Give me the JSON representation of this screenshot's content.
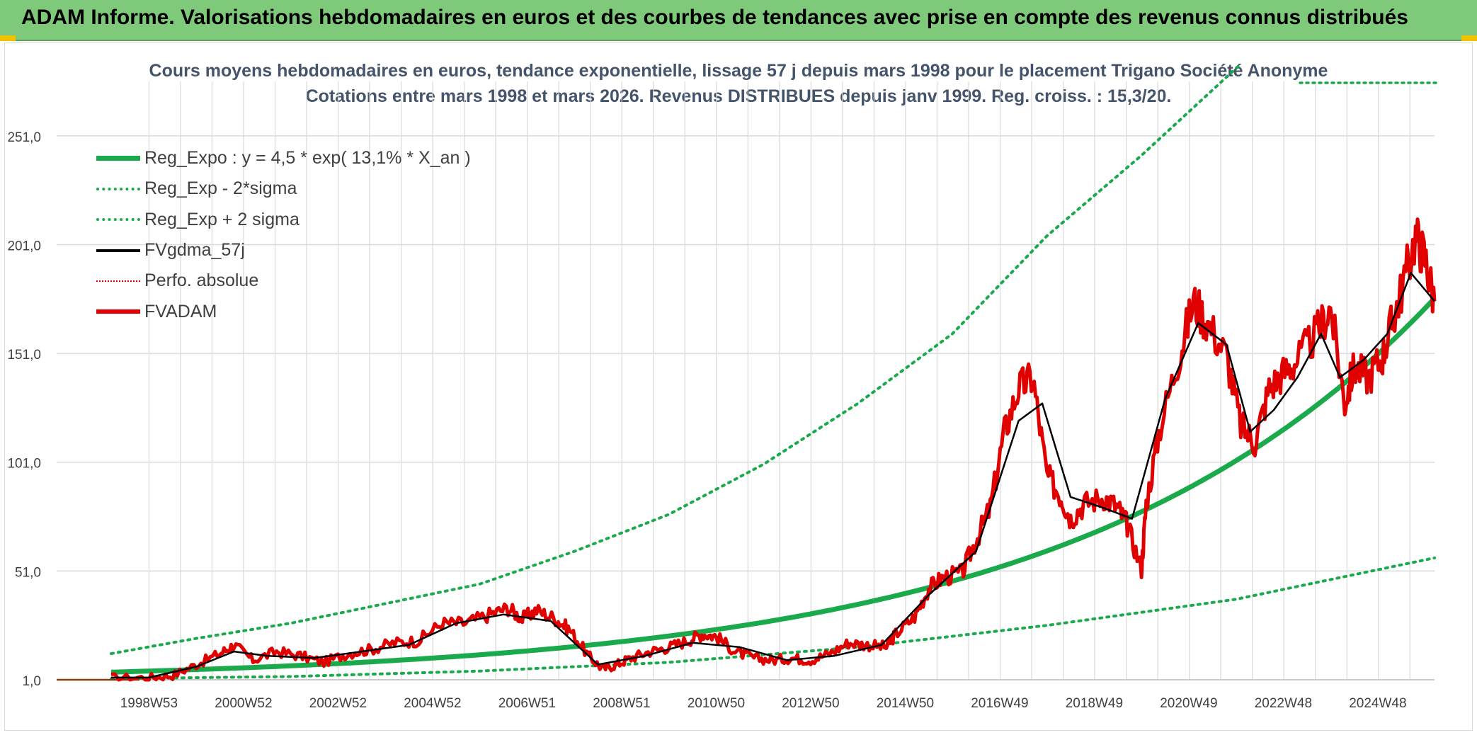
{
  "header": {
    "title": "ADAM Informe. Valorisations hebdomadaires en euros et des courbes de tendances avec prise en compte des revenus connus distribués"
  },
  "chart": {
    "title_line1": "Cours moyens hebdomadaires en euros, tendance exponentielle, lissage 57 j depuis mars 1998 pour le placement Trigano Société Anonyme",
    "title_line2": "Cotations entre mars 1998 et mars 2026. Revenus DISTRIBUES depuis janv 1999. Reg. croiss. : 15,3/20."
  },
  "legend": [
    {
      "label": "Reg_Expo : y = 4,5 * exp( 13,1% *  X_an )",
      "color": "#1aaa4c",
      "style": "solid-thick"
    },
    {
      "label": "Reg_Exp - 2*sigma",
      "color": "#1aaa4c",
      "style": "dotted"
    },
    {
      "label": "Reg_Exp + 2 sigma",
      "color": "#1aaa4c",
      "style": "dotted"
    },
    {
      "label": "FVgdma_57j",
      "color": "#000000",
      "style": "solid"
    },
    {
      "label": "Perfo. absolue",
      "color": "#e00000",
      "style": "dotted-thin"
    },
    {
      "label": "FVADAM",
      "color": "#e00000",
      "style": "solid-thick"
    }
  ],
  "colors": {
    "reg_expo": "#1aaa4c",
    "fvgdma": "#000000",
    "fvadam": "#e00000",
    "perfo": "#8b3a0f",
    "grid": "#d9d9d9",
    "axis_text": "#404040"
  },
  "chart_data": {
    "type": "line",
    "x_start_year": 1998.2,
    "x_end_year": 2026.2,
    "ylim": [
      1,
      276
    ],
    "yticks": [
      1,
      51,
      101,
      151,
      201,
      251
    ],
    "ytick_labels": [
      "1,0",
      "51,0",
      "101,0",
      "151,0",
      "201,0",
      "251,0"
    ],
    "xtick_labels": [
      "1998W53",
      "2000W52",
      "2002W52",
      "2004W52",
      "2006W51",
      "2008W51",
      "2010W50",
      "2012W50",
      "2014W50",
      "2016W49",
      "2018W49",
      "2020W49",
      "2022W48",
      "2024W48"
    ],
    "xtick_years": [
      1999.0,
      2001.0,
      2003.0,
      2005.0,
      2007.0,
      2009.0,
      2011.0,
      2013.0,
      2015.0,
      2017.0,
      2019.0,
      2021.0,
      2023.0,
      2025.0
    ],
    "reg_expo": {
      "name": "Reg_Expo : y = 4,5 * exp( 13,1% *  X_an )",
      "a": 4.5,
      "rate": 0.131,
      "x0_year": 1998.2
    },
    "reg_minus": {
      "name": "Reg_Exp - 2*sigma",
      "x": [
        1998.2,
        2002,
        2006,
        2010,
        2014,
        2018,
        2022,
        2026.2
      ],
      "y": [
        1.5,
        2.5,
        5,
        9,
        16,
        26,
        38,
        57
      ]
    },
    "reg_plus": {
      "name": "Reg_Exp + 2 sigma",
      "x": [
        1998.2,
        2000,
        2002,
        2004,
        2006,
        2008,
        2010,
        2012,
        2014,
        2016,
        2018,
        2020,
        2022.1
      ],
      "y": [
        13,
        20,
        27,
        36,
        45,
        60,
        77,
        100,
        128,
        160,
        205,
        242,
        284
      ]
    },
    "fvadam": {
      "name": "FVADAM",
      "x": [
        1998.2,
        1999.0,
        1999.5,
        2000.0,
        2000.5,
        2000.8,
        2001.2,
        2001.7,
        2002.2,
        2002.7,
        2003.2,
        2003.7,
        2004.2,
        2004.7,
        2005.2,
        2005.7,
        2006.2,
        2006.6,
        2006.9,
        2007.2,
        2007.6,
        2007.9,
        2008.3,
        2008.6,
        2008.9,
        2009.2,
        2009.6,
        2010.0,
        2010.4,
        2010.7,
        2011.0,
        2011.4,
        2011.8,
        2012.2,
        2012.6,
        2013.0,
        2013.4,
        2013.8,
        2014.2,
        2014.6,
        2014.8,
        2015.2,
        2015.5,
        2015.8,
        2016.2,
        2016.5,
        2016.8,
        2017.1,
        2017.4,
        2017.7,
        2018.0,
        2018.3,
        2018.5,
        2018.8,
        2019.2,
        2019.5,
        2019.7,
        2020.0,
        2020.1,
        2020.4,
        2020.8,
        2021.1,
        2021.4,
        2021.8,
        2022.1,
        2022.4,
        2022.7,
        2023.0,
        2023.3,
        2023.7,
        2024.0,
        2024.3,
        2024.5,
        2024.8,
        2025.1,
        2025.3,
        2025.5,
        2025.8,
        2026.0,
        2026.2
      ],
      "y": [
        2,
        2,
        3,
        8,
        13,
        17,
        10,
        14,
        12,
        9,
        13,
        15,
        18,
        19,
        27,
        27,
        31,
        34,
        29,
        33,
        29,
        24,
        12,
        6,
        8,
        11,
        14,
        16,
        19,
        22,
        21,
        14,
        11,
        10,
        11,
        10,
        13,
        18,
        17,
        16,
        22,
        30,
        43,
        48,
        50,
        65,
        80,
        115,
        135,
        140,
        95,
        85,
        75,
        82,
        85,
        80,
        72,
        52,
        82,
        118,
        150,
        175,
        165,
        150,
        118,
        110,
        135,
        142,
        148,
        160,
        172,
        128,
        145,
        140,
        150,
        165,
        180,
        205,
        195,
        175
      ]
    },
    "fvgdma": {
      "name": "FVgdma_57j",
      "x": [
        1998.2,
        1999.0,
        2000.0,
        2000.8,
        2001.5,
        2002.5,
        2003.5,
        2004.5,
        2005.5,
        2006.5,
        2007.5,
        2008.5,
        2009.5,
        2010.5,
        2011.5,
        2012.5,
        2013.5,
        2014.5,
        2015.5,
        2016.5,
        2017.4,
        2017.9,
        2018.5,
        2019.2,
        2019.8,
        2020.5,
        2021.2,
        2021.8,
        2022.3,
        2022.8,
        2023.3,
        2023.8,
        2024.2,
        2024.7,
        2025.2,
        2025.7,
        2026.2
      ],
      "y": [
        2,
        2,
        7,
        14,
        12,
        11,
        14,
        17,
        27,
        31,
        28,
        8,
        12,
        18,
        16,
        10,
        12,
        17,
        40,
        60,
        120,
        128,
        85,
        80,
        75,
        130,
        165,
        155,
        115,
        125,
        140,
        160,
        140,
        148,
        160,
        188,
        175
      ]
    },
    "perfo": {
      "name": "Perfo. absolue",
      "x": [
        1998.2,
        1998.8
      ],
      "y": [
        1,
        1
      ]
    }
  }
}
